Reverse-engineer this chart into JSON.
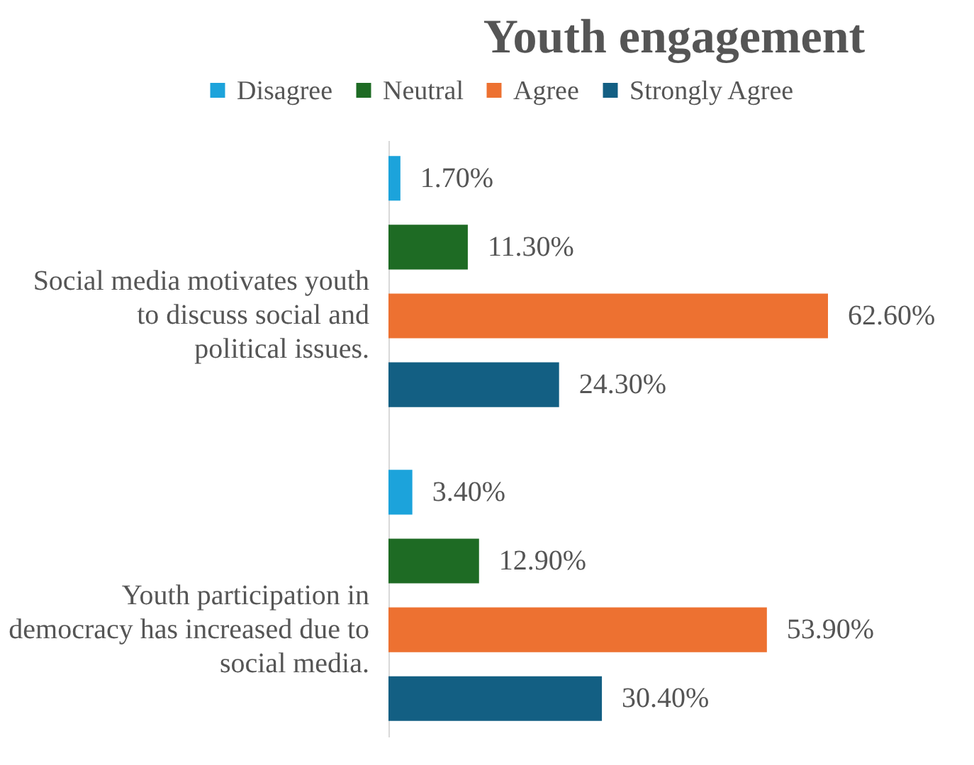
{
  "chart_data": {
    "type": "bar",
    "orientation": "horizontal",
    "title": "Youth engagement",
    "legend": "top",
    "categories": [
      "Social media motivates youth to discuss social and political issues.",
      "Youth participation in democracy has increased due to social media."
    ],
    "series": [
      {
        "name": "Disagree",
        "color": "#1ca3db",
        "values": [
          1.7,
          3.4
        ],
        "value_labels": [
          "1.70%",
          "3.40%"
        ]
      },
      {
        "name": "Neutral",
        "color": "#1e6b24",
        "values": [
          11.3,
          12.9
        ],
        "value_labels": [
          "11.30%",
          "12.90%"
        ]
      },
      {
        "name": "Agree",
        "color": "#ed7131",
        "values": [
          62.6,
          53.9
        ],
        "value_labels": [
          "62.60%",
          "53.90%"
        ]
      },
      {
        "name": "Strongly Agree",
        "color": "#135f83",
        "values": [
          24.3,
          30.4
        ],
        "value_labels": [
          "24.30%",
          "30.40%"
        ]
      }
    ]
  }
}
